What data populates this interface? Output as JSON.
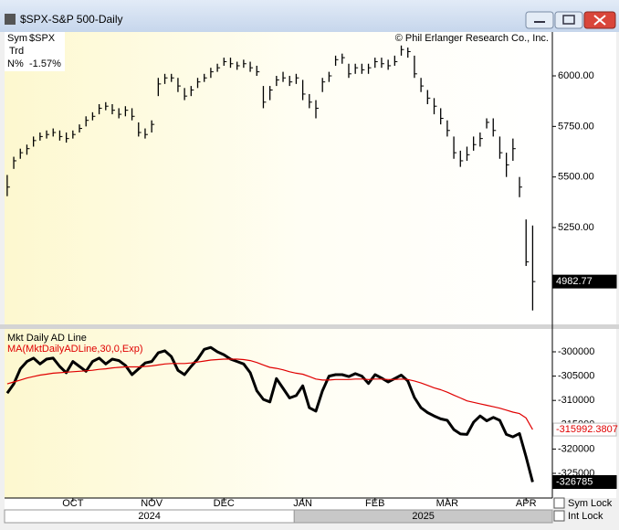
{
  "window": {
    "title": "$SPX-S&P 500-Daily"
  },
  "controls": [
    {
      "label": "Sym Lock"
    },
    {
      "label": "Int Lock"
    }
  ],
  "chart_data": [
    {
      "type": "ohlc",
      "annotation": "© Phil Erlanger Research Co., Inc.",
      "info": [
        {
          "label": "Sym",
          "value": "$SPX"
        },
        {
          "label": "Trd"
        },
        {
          "label": "N%",
          "value": "-1.57%"
        }
      ],
      "color": "#000000",
      "xlim": [
        -0.4,
        83
      ],
      "ylim": [
        4771,
        6217
      ],
      "yticks": [
        {
          "value": 5250,
          "label": "5250.00"
        },
        {
          "value": 5500,
          "label": "5500.00"
        },
        {
          "value": 5750,
          "label": "5750.00"
        },
        {
          "value": 6000,
          "label": "6000.00"
        }
      ],
      "high": [
        5510,
        5600,
        5640,
        5660,
        5700,
        5720,
        5730,
        5740,
        5730,
        5720,
        5730,
        5760,
        5800,
        5820,
        5860,
        5870,
        5860,
        5840,
        5850,
        5840,
        5770,
        5740,
        5780,
        5990,
        6010,
        6010,
        5990,
        5940,
        5950,
        5990,
        6010,
        6040,
        6060,
        6090,
        6090,
        6070,
        6080,
        6070,
        6050,
        5950,
        5950,
        6000,
        6020,
        6000,
        6010,
        5980,
        5910,
        5880,
        5990,
        6020,
        6100,
        6110,
        6060,
        6060,
        6060,
        6060,
        6090,
        6090,
        6080,
        6100,
        6150,
        6140,
        6100,
        5990,
        5930,
        5890,
        5840,
        5780,
        5700,
        5630,
        5650,
        5700,
        5720,
        5790,
        5790,
        5700,
        5620,
        5690,
        5500,
        5290,
        5260
      ],
      "low": [
        5405,
        5540,
        5590,
        5610,
        5650,
        5680,
        5690,
        5700,
        5680,
        5670,
        5690,
        5720,
        5750,
        5780,
        5810,
        5830,
        5810,
        5790,
        5800,
        5780,
        5700,
        5690,
        5720,
        5900,
        5960,
        5970,
        5920,
        5880,
        5900,
        5940,
        5970,
        5990,
        6020,
        6050,
        6040,
        6030,
        6040,
        6020,
        6000,
        5840,
        5880,
        5950,
        5970,
        5950,
        5960,
        5880,
        5840,
        5790,
        5920,
        5970,
        6050,
        6060,
        5990,
        6010,
        6010,
        6010,
        6040,
        6040,
        6030,
        6050,
        6100,
        6090,
        5990,
        5920,
        5860,
        5810,
        5760,
        5700,
        5590,
        5550,
        5580,
        5630,
        5650,
        5740,
        5700,
        5590,
        5500,
        5580,
        5400,
        5060,
        4840
      ],
      "close": [
        5450,
        5580,
        5620,
        5640,
        5680,
        5700,
        5710,
        5720,
        5700,
        5690,
        5710,
        5740,
        5780,
        5800,
        5840,
        5850,
        5830,
        5810,
        5830,
        5800,
        5720,
        5710,
        5760,
        5960,
        5990,
        5990,
        5950,
        5900,
        5930,
        5970,
        5990,
        6020,
        6040,
        6070,
        6060,
        6050,
        6060,
        6040,
        6020,
        5870,
        5930,
        5980,
        5990,
        5970,
        5990,
        5910,
        5870,
        5840,
        5970,
        6000,
        6080,
        6090,
        6010,
        6040,
        6030,
        6040,
        6070,
        6060,
        6050,
        6070,
        6130,
        6120,
        6010,
        5950,
        5890,
        5850,
        5790,
        5730,
        5620,
        5580,
        5610,
        5660,
        5690,
        5770,
        5730,
        5620,
        5560,
        5640,
        5450,
        5080,
        4982.77
      ]
    },
    {
      "type": "line",
      "xlim": [
        -0.4,
        83
      ],
      "xticks": [
        {
          "value": 10,
          "label": "OCT"
        },
        {
          "value": 22,
          "label": "NOV"
        },
        {
          "value": 33,
          "label": "DEC"
        },
        {
          "value": 45,
          "label": "JAN"
        },
        {
          "value": 56,
          "label": "FEB"
        },
        {
          "value": 67,
          "label": "MAR"
        },
        {
          "value": 79,
          "label": "APR"
        }
      ],
      "years": [
        {
          "label": "2024",
          "from": -0.4,
          "to": 43.7
        },
        {
          "label": "2025",
          "from": 43.7,
          "to": 83
        }
      ],
      "ylim": [
        -330075,
        -295300
      ],
      "yticks": [
        -325000,
        -320000,
        -315000,
        -310000,
        -305000,
        -300000
      ],
      "series": [
        {
          "name": "Mkt Daily AD Line",
          "color": "#000000",
          "values": [
            -308500,
            -306600,
            -303500,
            -302000,
            -301300,
            -302500,
            -301500,
            -301300,
            -303000,
            -304300,
            -302000,
            -303000,
            -304000,
            -302000,
            -301300,
            -302500,
            -301500,
            -301800,
            -302800,
            -304700,
            -303500,
            -302300,
            -302000,
            -300200,
            -299800,
            -301000,
            -303800,
            -304700,
            -303000,
            -301500,
            -299500,
            -299100,
            -300000,
            -300600,
            -301500,
            -302000,
            -302500,
            -304300,
            -308000,
            -309800,
            -310300,
            -305500,
            -307500,
            -309500,
            -309000,
            -307000,
            -311500,
            -312200,
            -308000,
            -305000,
            -304700,
            -304700,
            -305100,
            -304500,
            -305000,
            -306500,
            -304700,
            -305400,
            -306200,
            -305500,
            -304800,
            -306000,
            -309400,
            -311500,
            -312500,
            -313200,
            -313800,
            -314100,
            -316000,
            -316900,
            -317000,
            -314500,
            -313200,
            -314200,
            -313500,
            -314100,
            -317000,
            -317500,
            -316800,
            -321600,
            -326785
          ]
        },
        {
          "name": "MA(MktDailyADLine,30,0,Exp)",
          "color": "#e00000",
          "values": [
            -306600,
            -306200,
            -305800,
            -305400,
            -305100,
            -304800,
            -304600,
            -304400,
            -304300,
            -304200,
            -304100,
            -304000,
            -303900,
            -303800,
            -303600,
            -303500,
            -303300,
            -303200,
            -303100,
            -303100,
            -303100,
            -303000,
            -302900,
            -302700,
            -302500,
            -302400,
            -302400,
            -302400,
            -302300,
            -302100,
            -301900,
            -301700,
            -301600,
            -301500,
            -301500,
            -301500,
            -301600,
            -301800,
            -302200,
            -302700,
            -303200,
            -303400,
            -303700,
            -304100,
            -304400,
            -304600,
            -305100,
            -305600,
            -305800,
            -305800,
            -305700,
            -305700,
            -305700,
            -305600,
            -305600,
            -305700,
            -305600,
            -305600,
            -305700,
            -305700,
            -305600,
            -305700,
            -306000,
            -306400,
            -306900,
            -307400,
            -307800,
            -308300,
            -308900,
            -309500,
            -310100,
            -310400,
            -310700,
            -311000,
            -311300,
            -311600,
            -312000,
            -312400,
            -312700,
            -313600,
            -315992.3807
          ]
        }
      ]
    }
  ]
}
